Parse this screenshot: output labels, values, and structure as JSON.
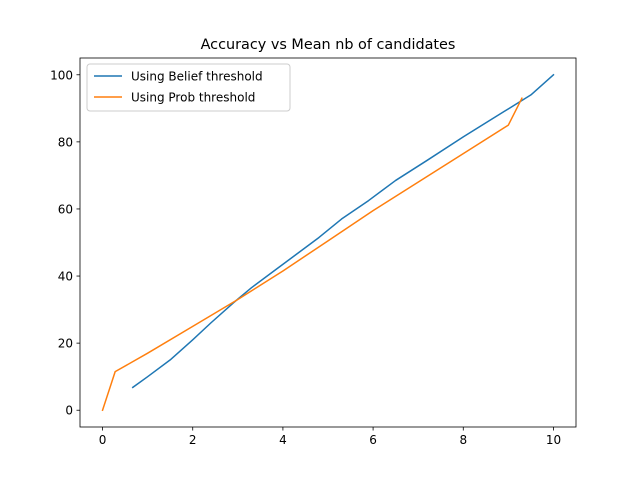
{
  "chart_data": {
    "type": "line",
    "title": "Accuracy vs Mean nb of candidates",
    "xlabel": "",
    "ylabel": "",
    "xlim": [
      -0.5,
      10.5
    ],
    "ylim": [
      -5,
      105
    ],
    "xticks": [
      0,
      2,
      4,
      6,
      8,
      10
    ],
    "yticks": [
      0,
      20,
      40,
      60,
      80,
      100
    ],
    "grid": false,
    "legend_position": "upper-left",
    "series": [
      {
        "name": "Using Belief threshold",
        "color": "#1f77b4",
        "points": [
          [
            0.67,
            6.8
          ],
          [
            1.0,
            10.0
          ],
          [
            1.5,
            15.0
          ],
          [
            2.0,
            21.0
          ],
          [
            2.4,
            26.0
          ],
          [
            2.9,
            32.0
          ],
          [
            3.3,
            36.5
          ],
          [
            3.8,
            41.5
          ],
          [
            4.3,
            46.5
          ],
          [
            4.8,
            51.5
          ],
          [
            5.3,
            57.0
          ],
          [
            5.9,
            62.5
          ],
          [
            6.5,
            68.5
          ],
          [
            7.2,
            74.5
          ],
          [
            8.0,
            81.5
          ],
          [
            8.9,
            89.0
          ],
          [
            9.5,
            94.0
          ],
          [
            10.0,
            100.0
          ]
        ]
      },
      {
        "name": "Using Prob threshold",
        "color": "#ff7f0e",
        "points": [
          [
            0.0,
            0.0
          ],
          [
            0.28,
            11.5
          ],
          [
            1.0,
            17.0
          ],
          [
            2.0,
            25.0
          ],
          [
            3.0,
            33.0
          ],
          [
            4.0,
            41.5
          ],
          [
            5.0,
            50.5
          ],
          [
            6.0,
            59.5
          ],
          [
            7.0,
            68.0
          ],
          [
            8.0,
            76.5
          ],
          [
            9.0,
            85.0
          ],
          [
            9.3,
            93.0
          ]
        ]
      }
    ]
  }
}
